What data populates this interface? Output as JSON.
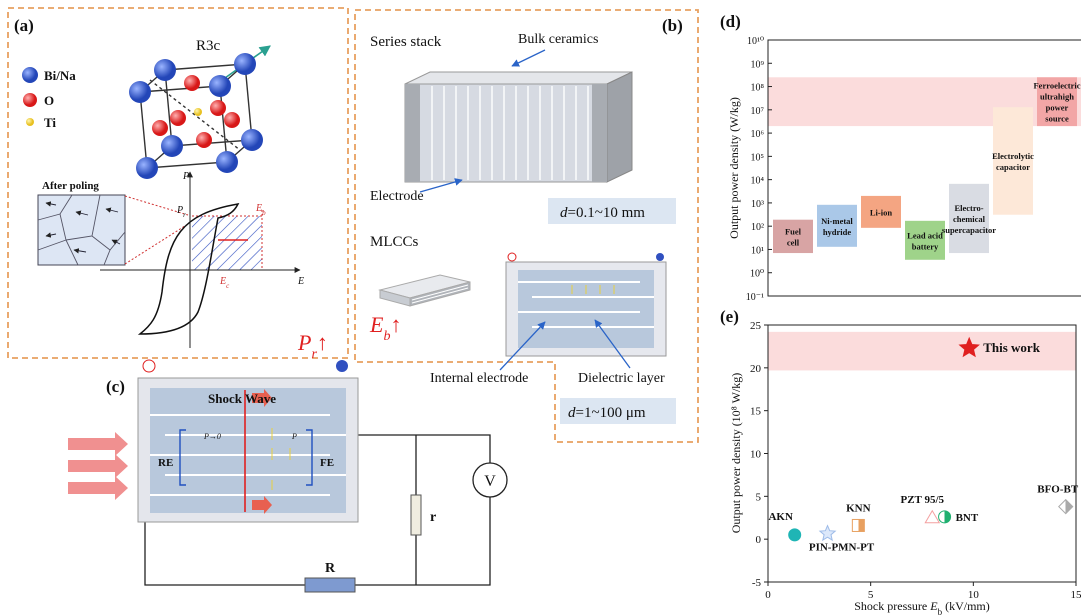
{
  "figure": {
    "a": {
      "tag": "(a)",
      "phase": "R3c",
      "atoms": [
        "Bi/Na",
        "O",
        "Ti"
      ],
      "inset": "After poling",
      "p_axis": "P",
      "e_axis": "E",
      "pr_label": [
        "P",
        "r"
      ],
      "eb_label": [
        "E",
        "b"
      ],
      "ec_label": [
        "E",
        "c"
      ],
      "caption": [
        "P",
        "r",
        "↑"
      ]
    },
    "b": {
      "tag": "(b)",
      "stack": "Series stack",
      "bulk": "Bulk ceramics",
      "electrode": "Electrode",
      "stack_d": [
        "d",
        "=0.1~10 mm"
      ],
      "mlcc": "MLCCs",
      "caption": [
        "E",
        "b",
        "↑"
      ],
      "internal": "Internal electrode",
      "dielectric": "Dielectric layer",
      "mlcc_d": [
        "d",
        "=1~100 μm"
      ]
    },
    "c": {
      "tag": "(c)",
      "wave": "Shock Wave",
      "re": "RE",
      "fe": "FE",
      "p0": "P→0",
      "p": "P",
      "r_small": "r",
      "meter": "V",
      "r_big": "R"
    }
  },
  "chart_data": [
    {
      "type": "range",
      "tag": "(d)",
      "y_label": "Output power density (W/kg)",
      "log_scale": true,
      "ylim": [
        0.1,
        10000000000.0
      ],
      "yticks": [
        {
          "value": 0.1,
          "label": "10⁻¹"
        },
        {
          "value": 1,
          "label": "10⁰"
        },
        {
          "value": 10,
          "label": "10¹"
        },
        {
          "value": 100,
          "label": "10²"
        },
        {
          "value": 1000,
          "label": "10³"
        },
        {
          "value": 10000,
          "label": "10⁴"
        },
        {
          "value": 100000,
          "label": "10⁵"
        },
        {
          "value": 1000000,
          "label": "10⁶"
        },
        {
          "value": 10000000,
          "label": "10⁷"
        },
        {
          "value": 100000000,
          "label": "10⁸"
        },
        {
          "value": 1000000000,
          "label": "10⁹"
        },
        {
          "value": 10000000000,
          "label": "10¹⁰"
        }
      ],
      "categories": [
        [
          "Fuel",
          "cell"
        ],
        [
          "Ni-metal",
          "hydride"
        ],
        [
          "Li-ion"
        ],
        [
          "Lead acid",
          "battery"
        ],
        [
          "Electro-",
          "chemical",
          "supercapacitor"
        ],
        [
          "Electrolytic",
          "capacitor"
        ],
        [
          "Ferroelectric",
          "ultrahigh",
          "power",
          "source"
        ]
      ],
      "low": [
        7,
        13,
        85,
        3.6,
        7,
        310,
        2000000
      ],
      "high": [
        190,
        830,
        2000,
        170,
        6600,
        13000000,
        250000000
      ],
      "colors": [
        "#d8a4a4",
        "#aac8e8",
        "#f4a582",
        "#9fd38a",
        "#d9dce3",
        "#fde8d8",
        "#f2a6a6"
      ],
      "band": [
        2000000,
        250000000
      ],
      "band_color": "#fbdcdc"
    },
    {
      "type": "scatter",
      "tag": "(e)",
      "y_label": "Output power density (10⁸ W/kg)",
      "x_label": [
        "Shock pressure ",
        "E",
        "b",
        " (kV/mm)"
      ],
      "xlim": [
        0,
        15
      ],
      "ylim": [
        -5,
        25
      ],
      "xticks": [
        0,
        5,
        10,
        15
      ],
      "yticks": [
        -5,
        0,
        5,
        10,
        15,
        20,
        25
      ],
      "categories": [
        "AKN",
        "PIN-PMN-PT",
        "KNN",
        "PZT 95/5",
        "BNT",
        "BFO-BT",
        "This work"
      ],
      "x": [
        1.3,
        2.9,
        4.4,
        8.0,
        8.6,
        14.5,
        9.8
      ],
      "y": [
        0.5,
        0.65,
        1.6,
        2.5,
        2.6,
        3.8,
        22.3
      ],
      "markers": [
        "circle",
        "star",
        "half-square",
        "triangle",
        "half-circle",
        "half-diamond",
        "star"
      ],
      "colors": [
        "#1fb5b5",
        "#9dbbe8",
        "#e8a060",
        "#f4a0a0",
        "#20b070",
        "#aaaaaa",
        "#e02020"
      ],
      "band": [
        19.7,
        24.2
      ],
      "band_color": "#fbdcdc"
    }
  ]
}
